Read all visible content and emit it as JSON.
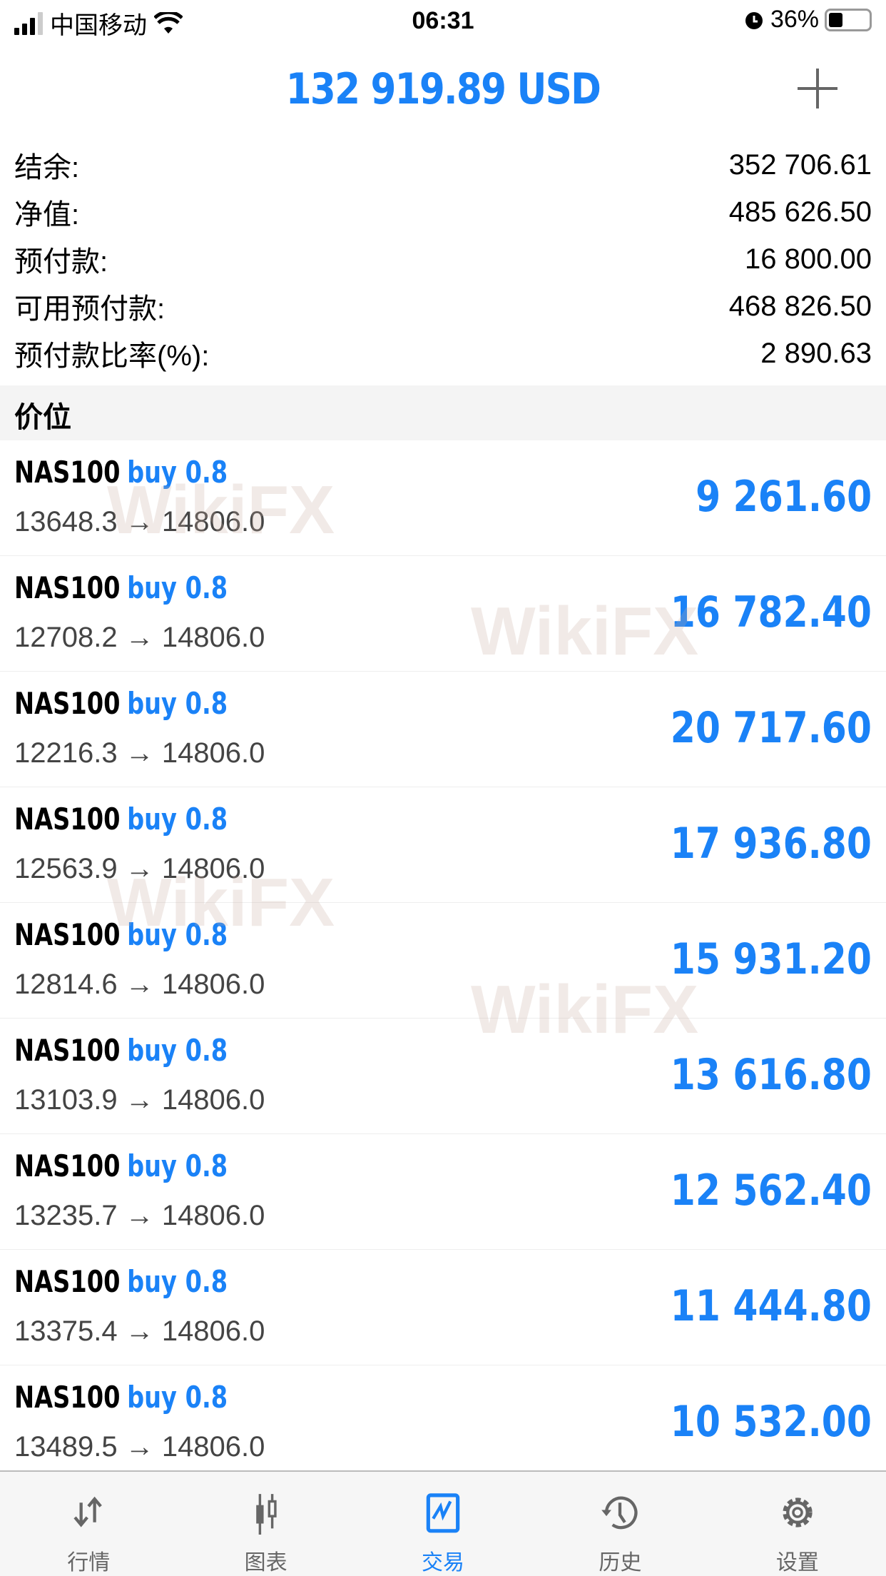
{
  "status_bar": {
    "carrier": "中国移动",
    "time": "06:31",
    "battery": "36%",
    "battery_level": 0.36
  },
  "header": {
    "title": "132 919.89 USD",
    "add_icon": "plus-icon"
  },
  "summary": [
    {
      "label": "结余:",
      "value": "352 706.61"
    },
    {
      "label": "净值:",
      "value": "485 626.50"
    },
    {
      "label": "预付款:",
      "value": "16 800.00"
    },
    {
      "label": "可用预付款:",
      "value": "468 826.50"
    },
    {
      "label": "预付款比率(%):",
      "value": "2 890.63"
    }
  ],
  "section_title": "价位",
  "positions": [
    {
      "symbol": "NAS100",
      "type": "buy 0.8",
      "prices": "13648.3 → 14806.0",
      "profit": "9 261.60"
    },
    {
      "symbol": "NAS100",
      "type": "buy 0.8",
      "prices": "12708.2 → 14806.0",
      "profit": "16 782.40"
    },
    {
      "symbol": "NAS100",
      "type": "buy 0.8",
      "prices": "12216.3 → 14806.0",
      "profit": "20 717.60"
    },
    {
      "symbol": "NAS100",
      "type": "buy 0.8",
      "prices": "12563.9 → 14806.0",
      "profit": "17 936.80"
    },
    {
      "symbol": "NAS100",
      "type": "buy 0.8",
      "prices": "12814.6 → 14806.0",
      "profit": "15 931.20"
    },
    {
      "symbol": "NAS100",
      "type": "buy 0.8",
      "prices": "13103.9 → 14806.0",
      "profit": "13 616.80"
    },
    {
      "symbol": "NAS100",
      "type": "buy 0.8",
      "prices": "13235.7 → 14806.0",
      "profit": "12 562.40"
    },
    {
      "symbol": "NAS100",
      "type": "buy 0.8",
      "prices": "13375.4 → 14806.0",
      "profit": "11 444.80"
    },
    {
      "symbol": "NAS100",
      "type": "buy 0.8",
      "prices": "13489.5 → 14806.0",
      "profit": "10 532.00"
    }
  ],
  "watermark": "WikiFX",
  "tabs": [
    {
      "label": "行情",
      "icon": "quotes-arrows-icon"
    },
    {
      "label": "图表",
      "icon": "candlestick-chart-icon"
    },
    {
      "label": "交易",
      "icon": "trade-chart-icon",
      "active": true
    },
    {
      "label": "历史",
      "icon": "history-clock-icon"
    },
    {
      "label": "设置",
      "icon": "gear-icon"
    }
  ],
  "colors": {
    "accent": "#1a82f7",
    "text": "#000000",
    "muted": "#666666"
  }
}
